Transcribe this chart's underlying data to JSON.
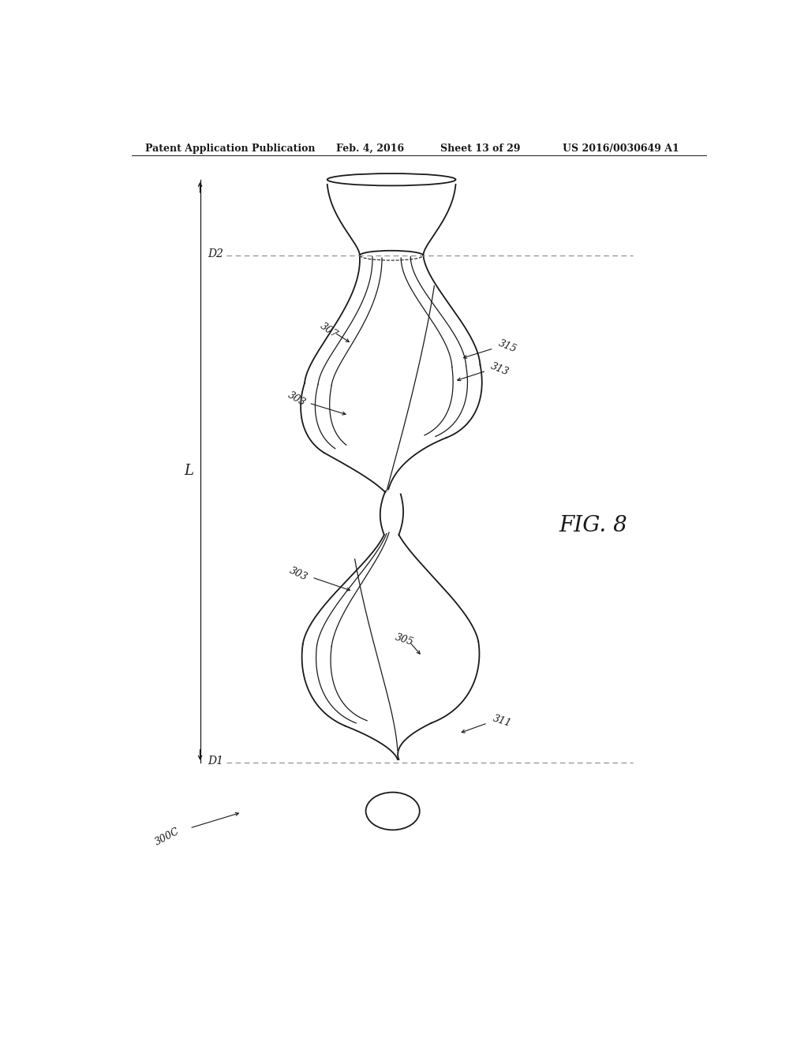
{
  "title_line1": "Patent Application Publication",
  "title_line2": "Feb. 4, 2016",
  "title_line3": "Sheet 13 of 29",
  "title_line4": "US 2016/0030649 A1",
  "fig_label": "FIG. 8",
  "label_300C": "300C",
  "label_D1": "D1",
  "label_D2": "D2",
  "label_L": "L",
  "label_303_top": "303",
  "label_307": "307",
  "label_303_bot": "303",
  "label_305": "305",
  "label_311": "311",
  "label_313": "313",
  "label_315": "315",
  "bg_color": "#ffffff",
  "line_color": "#1a1a1a",
  "dim_line_color": "#888888"
}
